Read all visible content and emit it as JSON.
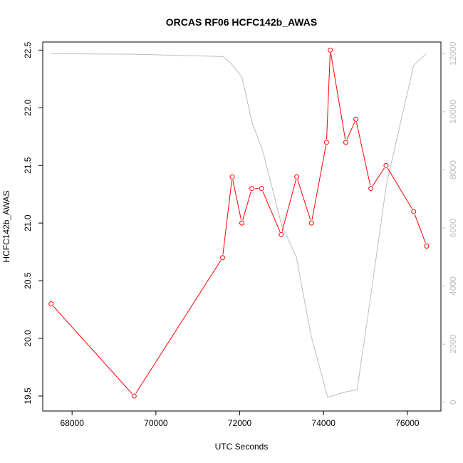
{
  "chart_data": {
    "type": "line",
    "title": "ORCAS RF06 HCFC142b_AWAS",
    "xlabel": "UTC Seconds",
    "ylabel": "HCFC142b_AWAS",
    "xlim": [
      67300,
      76800
    ],
    "ylim": [
      19.37,
      22.57
    ],
    "y2lim": [
      -300,
      12400
    ],
    "xticks": [
      68000,
      70000,
      72000,
      74000,
      76000
    ],
    "yticks": [
      19.5,
      20.0,
      20.5,
      21.0,
      21.5,
      22.0,
      22.5
    ],
    "y2ticks": [
      0,
      2000,
      4000,
      6000,
      8000,
      10000,
      12000
    ],
    "xtick_labels": [
      "68000",
      "70000",
      "72000",
      "74000",
      "76000"
    ],
    "ytick_labels": [
      "19.5",
      "20.0",
      "20.5",
      "21.0",
      "21.5",
      "22.0",
      "22.5"
    ],
    "y2tick_labels": [
      "0",
      "2000",
      "4000",
      "6000",
      "8000",
      "10000",
      "12000"
    ],
    "grid": false,
    "colors": {
      "primary": "#ff0000",
      "secondary": "#bdbdbd",
      "axis": "#000000"
    },
    "series": [
      {
        "axis": "left",
        "style": "line+markers",
        "x": [
          67500,
          69480,
          71590,
          71820,
          72050,
          72290,
          72520,
          72990,
          73360,
          73710,
          74070,
          74160,
          74530,
          74770,
          75130,
          75490,
          76150,
          76460
        ],
        "y": [
          20.3,
          19.5,
          20.7,
          21.4,
          21.0,
          21.3,
          21.3,
          20.9,
          21.4,
          21.0,
          21.7,
          22.5,
          21.7,
          21.9,
          21.3,
          21.5,
          21.1,
          20.8
        ]
      },
      {
        "axis": "right",
        "style": "line",
        "x": [
          67500,
          69500,
          71600,
          71800,
          72050,
          72300,
          72550,
          73000,
          73350,
          73700,
          74100,
          74500,
          74800,
          75150,
          75500,
          76150,
          76450
        ],
        "y": [
          12000,
          11980,
          11900,
          11650,
          11200,
          9600,
          8650,
          6100,
          5000,
          2300,
          170,
          350,
          430,
          3900,
          7500,
          11600,
          12000
        ]
      }
    ]
  }
}
